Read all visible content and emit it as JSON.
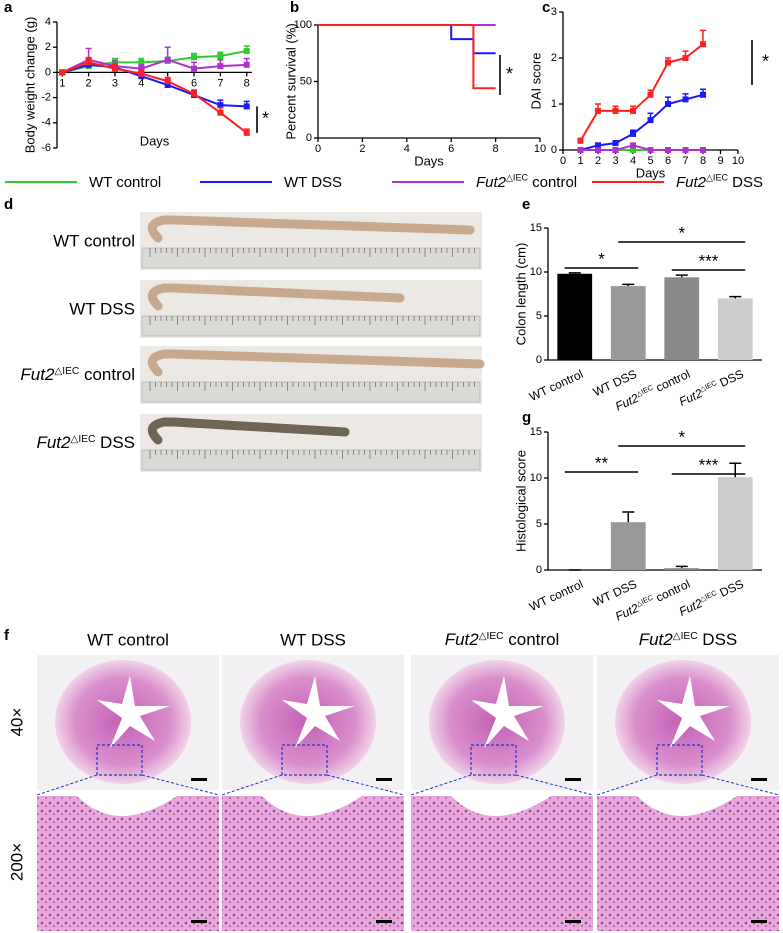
{
  "panels": [
    "a",
    "b",
    "c",
    "d",
    "e",
    "f",
    "g"
  ],
  "chart_data": [
    {
      "type": "line",
      "xlabel": "Days",
      "ylabel": "Body weight change (g)",
      "x": [
        1,
        2,
        3,
        4,
        5,
        6,
        7,
        8
      ],
      "xlim": [
        0.8,
        8.2
      ],
      "xticks": [
        1,
        2,
        3,
        4,
        5,
        6,
        7,
        8
      ],
      "ylim": [
        -6,
        4
      ],
      "yticks": [
        -6,
        -4,
        -2,
        0,
        2,
        4
      ],
      "annotations": [
        "*"
      ],
      "series": [
        {
          "name": "WT control",
          "color": "#2ecc2e",
          "values": [
            0,
            0.5,
            0.8,
            0.8,
            0.9,
            1.2,
            1.3,
            1.7
          ],
          "errors": [
            0,
            0.3,
            0.3,
            0.3,
            0.3,
            0.3,
            0.3,
            0.4
          ]
        },
        {
          "name": "WT DSS",
          "color": "#1a1aff",
          "values": [
            0,
            0.6,
            0.4,
            -0.3,
            -1.0,
            -1.8,
            -2.6,
            -2.7
          ],
          "errors": [
            0,
            0.3,
            0.3,
            0.3,
            0.4,
            0.3,
            0.4,
            0.4
          ]
        },
        {
          "name": "Fut2△IEC control",
          "color": "#b030d0",
          "values": [
            0,
            1.0,
            0.5,
            0.3,
            1.0,
            0.3,
            0.5,
            0.6
          ],
          "errors": [
            0,
            0.9,
            0.4,
            0.3,
            1.0,
            0.5,
            0.5,
            0.5
          ]
        },
        {
          "name": "Fut2△IEC DSS",
          "color": "#ff2020",
          "values": [
            0,
            0.8,
            0.3,
            -0.1,
            -0.7,
            -1.7,
            -3.2,
            -4.8
          ],
          "errors": [
            0,
            0.3,
            0.3,
            0.3,
            0.3,
            0.3,
            0.4,
            0.3
          ]
        }
      ]
    },
    {
      "type": "step",
      "xlabel": "Days",
      "ylabel": "Percent survival (%)",
      "x": [
        0,
        6,
        7,
        8
      ],
      "xlim": [
        0,
        10
      ],
      "xticks": [
        0,
        2,
        4,
        6,
        8,
        10
      ],
      "ylim": [
        0,
        100
      ],
      "yticks": [
        0,
        50,
        100
      ],
      "annotations": [
        "*"
      ],
      "series": [
        {
          "name": "WT control",
          "color": "#2ecc2e",
          "values": [
            100,
            100,
            100,
            100
          ]
        },
        {
          "name": "WT DSS",
          "color": "#1a1aff",
          "values": [
            100,
            87.5,
            75,
            75
          ]
        },
        {
          "name": "Fut2△IEC control",
          "color": "#b030d0",
          "values": [
            100,
            100,
            100,
            100
          ]
        },
        {
          "name": "Fut2△IEC DSS",
          "color": "#ff2020",
          "values": [
            100,
            100,
            44,
            44
          ]
        }
      ]
    },
    {
      "type": "line",
      "xlabel": "Days",
      "ylabel": "DAI score",
      "x": [
        1,
        2,
        3,
        4,
        5,
        6,
        7,
        8
      ],
      "xlim": [
        0,
        10
      ],
      "xticks": [
        0,
        1,
        2,
        3,
        4,
        5,
        6,
        7,
        8,
        9,
        10
      ],
      "ylim": [
        0,
        3
      ],
      "yticks": [
        0,
        1,
        2,
        3
      ],
      "annotations": [
        "*"
      ],
      "series": [
        {
          "name": "WT control",
          "color": "#2ecc2e",
          "values": [
            0,
            0,
            0,
            0,
            0,
            0,
            0,
            0
          ],
          "errors": [
            0,
            0,
            0,
            0,
            0,
            0,
            0,
            0
          ]
        },
        {
          "name": "WT DSS",
          "color": "#1a1aff",
          "values": [
            0,
            0.1,
            0.15,
            0.35,
            0.65,
            1.0,
            1.1,
            1.2
          ],
          "errors": [
            0,
            0.05,
            0.05,
            0.08,
            0.15,
            0.15,
            0.12,
            0.12
          ]
        },
        {
          "name": "Fut2△IEC control",
          "color": "#b030d0",
          "values": [
            0,
            0,
            0,
            0.1,
            0,
            0,
            0,
            0
          ],
          "errors": [
            0,
            0,
            0,
            0,
            0,
            0,
            0,
            0
          ]
        },
        {
          "name": "Fut2△IEC DSS",
          "color": "#ff2020",
          "values": [
            0.2,
            0.85,
            0.85,
            0.85,
            1.2,
            1.9,
            2.0,
            2.3
          ],
          "errors": [
            0.05,
            0.15,
            0.1,
            0.1,
            0.1,
            0.1,
            0.15,
            0.3
          ]
        }
      ]
    },
    {
      "type": "bar",
      "ylabel": "Colon length (cm)",
      "categories": [
        "WT control",
        "WT DSS",
        "Fut2△IEC control",
        "Fut2△IEC DSS"
      ],
      "values": [
        9.8,
        8.4,
        9.4,
        7.0
      ],
      "errors": [
        0.1,
        0.2,
        0.25,
        0.2
      ],
      "colors": [
        "#000000",
        "#999999",
        "#8a8a8a",
        "#cccccc"
      ],
      "ylim": [
        0,
        15
      ],
      "yticks": [
        0,
        5,
        10,
        15
      ],
      "annotations": [
        "*",
        "*",
        "***"
      ]
    },
    {
      "type": "bar",
      "ylabel": "Histological score",
      "categories": [
        "WT control",
        "WT DSS",
        "Fut2△IEC control",
        "Fut2△IEC DSS"
      ],
      "values": [
        0,
        5.2,
        0.2,
        10.1
      ],
      "errors": [
        0,
        1.1,
        0.2,
        1.5
      ],
      "colors": [
        "#000000",
        "#999999",
        "#8a8a8a",
        "#cccccc"
      ],
      "ylim": [
        0,
        15
      ],
      "yticks": [
        0,
        5,
        10,
        15
      ],
      "annotations": [
        "**",
        "*",
        "***"
      ]
    }
  ],
  "colon_photos": {
    "labels": [
      "WT control",
      "WT DSS",
      "Fut2△IEC control",
      "Fut2△IEC DSS"
    ]
  },
  "histology": {
    "columns": [
      "WT control",
      "WT DSS",
      "Fut2△IEC control",
      "Fut2△IEC DSS"
    ],
    "rows": [
      "40×",
      "200×"
    ]
  }
}
